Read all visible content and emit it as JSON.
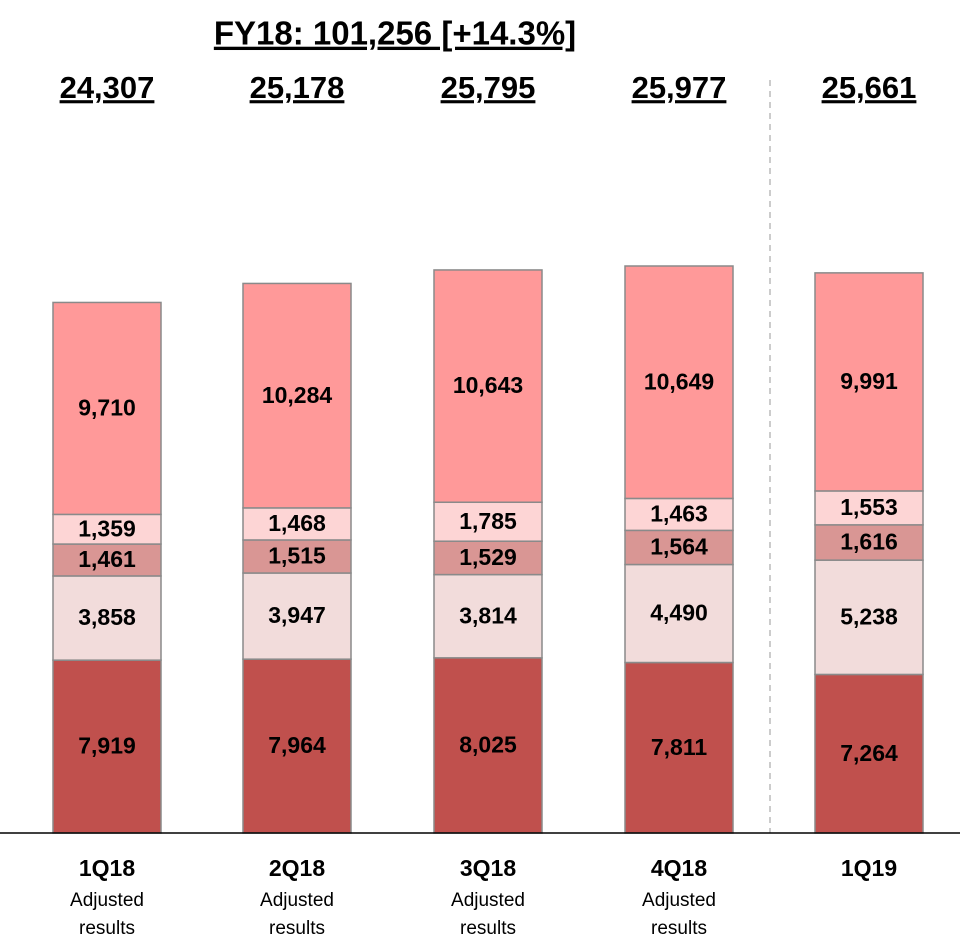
{
  "chart_data": {
    "type": "stacked_bar",
    "title": "FY18: 101,256 [+14.3%]",
    "categories": [
      "1Q18",
      "2Q18",
      "3Q18",
      "4Q18",
      "1Q19"
    ],
    "sublabels": [
      "Adjusted results",
      "Adjusted results",
      "Adjusted results",
      "Adjusted results",
      null
    ],
    "totals": [
      24307,
      25178,
      25795,
      25977,
      25661
    ],
    "totals_labels": [
      "24,307",
      "25,178",
      "25,795",
      "25,977",
      "25,661"
    ],
    "series": [
      {
        "color": "#c0504d",
        "values": [
          7919,
          7964,
          8025,
          7811,
          7264
        ],
        "value_labels": [
          "7,919",
          "7,964",
          "8,025",
          "7,811",
          "7,264"
        ]
      },
      {
        "color": "#f2dcdb",
        "values": [
          3858,
          3947,
          3814,
          4490,
          5238
        ],
        "value_labels": [
          "3,858",
          "3,947",
          "3,814",
          "4,490",
          "5,238"
        ]
      },
      {
        "color": "#d99694",
        "values": [
          1461,
          1515,
          1529,
          1564,
          1616
        ],
        "value_labels": [
          "1,461",
          "1,515",
          "1,529",
          "1,564",
          "1,616"
        ]
      },
      {
        "color": "#fdd5d5",
        "values": [
          1359,
          1468,
          1785,
          1463,
          1553
        ],
        "value_labels": [
          "1,359",
          "1,468",
          "1,785",
          "1,463",
          "1,553"
        ]
      },
      {
        "color": "#ff9999",
        "values": [
          9710,
          10284,
          10643,
          10649,
          9991
        ],
        "value_labels": [
          "9,710",
          "10,284",
          "10,643",
          "10,649",
          "9,991"
        ]
      }
    ]
  }
}
